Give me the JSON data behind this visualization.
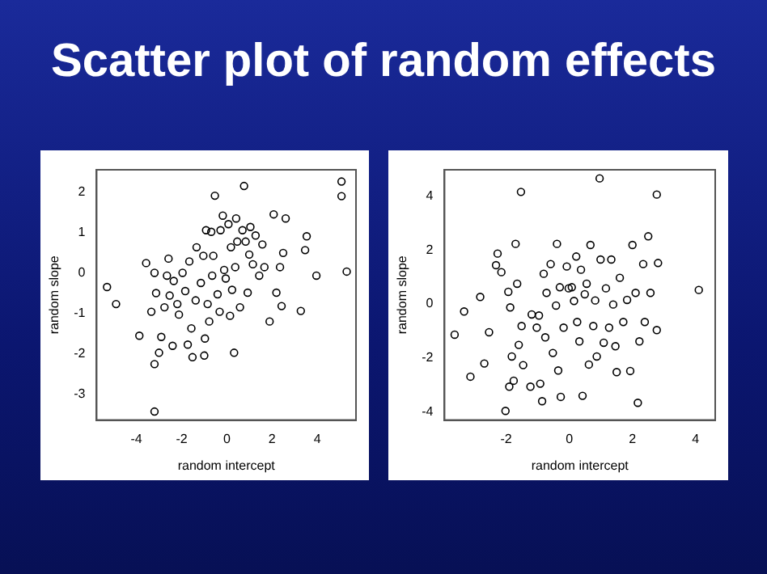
{
  "chart_data": [
    {
      "type": "scatter",
      "title": "Scatter plot of random effects",
      "xlabel": "random intercept",
      "ylabel": "random slope",
      "marker": "circle",
      "grid": false,
      "xlim": [
        -5.76,
        5.71
      ],
      "ylim": [
        -3.63,
        2.54
      ],
      "xticks": [
        -4,
        -2,
        0,
        2,
        4
      ],
      "yticks": [
        -3,
        -2,
        -1,
        0,
        1,
        2
      ],
      "series": [
        {
          "color": "#000000",
          "x": [
            -5.3,
            -4.9,
            -3.87,
            -3.57,
            -3.34,
            -3.2,
            -3.2,
            -3.2,
            -3.13,
            -3.0,
            -2.9,
            -2.76,
            -2.65,
            -2.58,
            -2.53,
            -2.4,
            -2.35,
            -2.19,
            -2.12,
            -1.96,
            -1.84,
            -1.73,
            -1.66,
            -1.57,
            -1.52,
            -1.38,
            -1.34,
            -1.15,
            -1.04,
            -0.97,
            -1.0,
            -0.92,
            -0.85,
            -0.78,
            -0.69,
            -0.65,
            -0.6,
            -0.53,
            -0.41,
            -0.32,
            -0.28,
            -0.18,
            -0.12,
            -0.05,
            0.07,
            0.14,
            0.18,
            0.23,
            0.32,
            0.37,
            0.41,
            0.46,
            0.58,
            0.69,
            0.76,
            0.83,
            0.92,
            0.99,
            1.04,
            1.15,
            1.27,
            1.43,
            1.57,
            1.66,
            1.89,
            2.07,
            2.19,
            2.35,
            2.42,
            2.49,
            2.6,
            3.27,
            3.46,
            3.53,
            3.96,
            5.07,
            5.07,
            5.3
          ],
          "values": [
            -0.35,
            -0.77,
            -1.55,
            0.24,
            -0.96,
            0,
            -2.25,
            -3.42,
            -0.5,
            -1.97,
            -1.58,
            -0.85,
            -0.07,
            0.35,
            -0.56,
            -1.8,
            -0.2,
            -0.77,
            -1.03,
            0,
            -0.45,
            -1.77,
            0.28,
            -1.37,
            -2.08,
            -0.68,
            0.63,
            -0.25,
            0.42,
            -1.62,
            -2.04,
            1.05,
            -0.77,
            -1.2,
            1.01,
            -0.07,
            0.42,
            1.9,
            -0.53,
            -0.96,
            1.05,
            1.41,
            0.07,
            -0.14,
            1.2,
            -1.06,
            0.63,
            -0.42,
            -1.97,
            0.14,
            1.34,
            0.77,
            -0.85,
            1.05,
            2.14,
            0.77,
            -0.49,
            0.45,
            1.13,
            0.21,
            0.92,
            -0.07,
            0.7,
            0.14,
            -1.2,
            1.44,
            -0.49,
            0.14,
            -0.82,
            0.49,
            1.34,
            -0.94,
            0.56,
            0.9,
            -0.07,
            2.25,
            1.89,
            0.03
          ]
        }
      ]
    },
    {
      "type": "scatter",
      "xlabel": "random intercept",
      "ylabel": "random slope",
      "marker": "circle",
      "grid": false,
      "xlim": [
        -3.95,
        4.62
      ],
      "ylim": [
        -4.31,
        4.98
      ],
      "xticks": [
        -2,
        0,
        2,
        4
      ],
      "yticks": [
        -4,
        -2,
        0,
        2,
        4
      ],
      "series": [
        {
          "color": "#000000",
          "x": [
            -3.63,
            -3.33,
            -3.13,
            -2.82,
            -2.69,
            -2.54,
            -2.32,
            -2.27,
            -2.15,
            -2.02,
            -1.93,
            -1.9,
            -1.87,
            -1.82,
            -1.76,
            -1.7,
            -1.65,
            -1.6,
            -1.53,
            -1.51,
            -1.46,
            -1.23,
            -1.19,
            -1.03,
            -0.96,
            -0.92,
            -0.86,
            -0.81,
            -0.76,
            -0.72,
            -0.59,
            -0.52,
            -0.42,
            -0.39,
            -0.35,
            -0.3,
            -0.27,
            -0.18,
            -0.08,
            -0.02,
            0.08,
            0.15,
            0.22,
            0.25,
            0.32,
            0.37,
            0.42,
            0.49,
            0.55,
            0.62,
            0.67,
            0.76,
            0.82,
            0.87,
            0.96,
            0.99,
            1.09,
            1.16,
            1.26,
            1.33,
            1.39,
            1.46,
            1.5,
            1.6,
            1.71,
            1.83,
            1.93,
            2.0,
            2.1,
            2.17,
            2.22,
            2.34,
            2.39,
            2.5,
            2.57,
            2.77,
            2.77,
            2.81,
            4.1
          ],
          "values": [
            -1.14,
            -0.28,
            -2.7,
            0.26,
            -2.21,
            -1.05,
            1.44,
            1.87,
            1.18,
            -3.97,
            0.45,
            -3.07,
            -0.13,
            -1.95,
            -2.85,
            2.23,
            0.75,
            -1.52,
            4.16,
            -0.82,
            -2.27,
            -3.07,
            -0.39,
            -0.88,
            -0.43,
            -2.96,
            -3.61,
            1.12,
            -1.24,
            0.41,
            1.48,
            -1.82,
            -0.06,
            2.23,
            -2.47,
            0.62,
            -3.45,
            -0.88,
            1.39,
            0.58,
            0.62,
            0.11,
            1.76,
            -0.67,
            -1.39,
            1.27,
            -3.41,
            0.36,
            0.75,
            -2.25,
            2.19,
            -0.82,
            0.13,
            -1.95,
            4.66,
            1.65,
            -1.44,
            0.58,
            -0.88,
            1.65,
            -0.02,
            -1.57,
            -2.53,
            0.97,
            -0.67,
            0.15,
            -2.49,
            2.19,
            0.41,
            -3.67,
            -1.39,
            1.48,
            -0.67,
            2.51,
            0.41,
            4.06,
            -0.97,
            1.52,
            0.52
          ]
        }
      ]
    }
  ]
}
